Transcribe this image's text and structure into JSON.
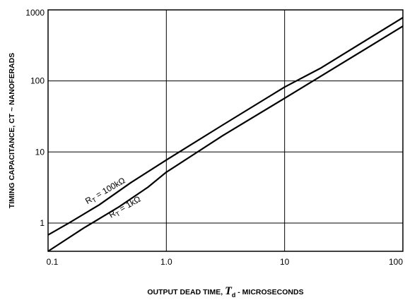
{
  "chart_data": {
    "type": "line",
    "x_scale": "log",
    "y_scale": "log",
    "xlim": [
      0.1,
      100
    ],
    "ylim": [
      0.4,
      1000
    ],
    "grid": true,
    "xticks": [
      "0.1",
      "1.0",
      "10",
      "100"
    ],
    "yticks": [
      "1",
      "10",
      "100",
      "1000"
    ],
    "xlabel": {
      "prefix": "OUTPUT  DEAD  TIME, ",
      "symbol": "T",
      "subscript": "d",
      "suffix": "  -  MICROSECONDS"
    },
    "ylabel": "TIMING CAPACITANCE, CT ~ NANOFERADS",
    "series": [
      {
        "name": "RT = 100kΩ",
        "label_parts": {
          "main": "R",
          "sub": "T",
          "rest": " = 100kΩ"
        },
        "color": "#000000",
        "points": [
          [
            0.1,
            0.68
          ],
          [
            0.15,
            1.0
          ],
          [
            0.27,
            1.8
          ],
          [
            0.5,
            3.7
          ],
          [
            1.0,
            7.7
          ],
          [
            3.0,
            24
          ],
          [
            10,
            82
          ],
          [
            20,
            150
          ],
          [
            100,
            780
          ]
        ]
      },
      {
        "name": "RT = 1kΩ",
        "label_parts": {
          "main": "R",
          "sub": "T",
          "rest": " = 1kΩ"
        },
        "color": "#000000",
        "points": [
          [
            0.1,
            0.4
          ],
          [
            0.2,
            0.85
          ],
          [
            0.4,
            1.7
          ],
          [
            0.7,
            3.2
          ],
          [
            1.0,
            5.2
          ],
          [
            3.0,
            17
          ],
          [
            10,
            57
          ],
          [
            100,
            590
          ]
        ]
      }
    ]
  }
}
